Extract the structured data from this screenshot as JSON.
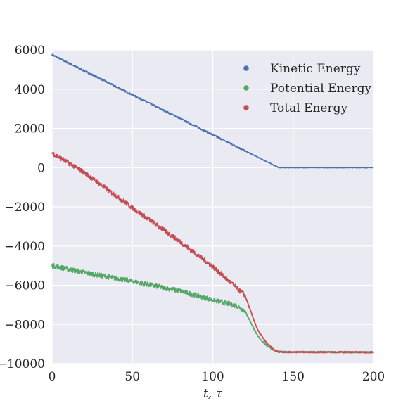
{
  "chart_data": {
    "type": "line",
    "title": "",
    "xlabel": "t, τ",
    "ylabel": "",
    "xlim": [
      0,
      200
    ],
    "ylim": [
      -10000,
      6000
    ],
    "xticks": [
      0,
      50,
      100,
      150,
      200
    ],
    "yticks": [
      -10000,
      -8000,
      -6000,
      -4000,
      -2000,
      0,
      2000,
      4000,
      6000
    ],
    "grid": true,
    "legend_position": "top-right",
    "background": "#eaeaf2",
    "series": [
      {
        "name": "Kinetic Energy",
        "color": "#4c72b0",
        "noise": 40,
        "points": [
          [
            0,
            5750
          ],
          [
            141,
            0
          ],
          [
            200,
            0
          ]
        ]
      },
      {
        "name": "Potential Energy",
        "color": "#55a868",
        "noise": 120,
        "points": [
          [
            0,
            -5000
          ],
          [
            20,
            -5350
          ],
          [
            50,
            -5800
          ],
          [
            80,
            -6300
          ],
          [
            100,
            -6750
          ],
          [
            115,
            -7050
          ],
          [
            120,
            -7300
          ],
          [
            123,
            -7800
          ],
          [
            128,
            -8600
          ],
          [
            133,
            -9050
          ],
          [
            138,
            -9300
          ],
          [
            141,
            -9400
          ],
          [
            150,
            -9410
          ],
          [
            200,
            -9420
          ]
        ]
      },
      {
        "name": "Total Energy",
        "color": "#c44e52",
        "noise": 120,
        "points": [
          [
            0,
            750
          ],
          [
            20,
            -250
          ],
          [
            50,
            -2050
          ],
          [
            80,
            -3800
          ],
          [
            100,
            -5050
          ],
          [
            115,
            -6150
          ],
          [
            120,
            -6500
          ],
          [
            123,
            -7200
          ],
          [
            128,
            -8300
          ],
          [
            133,
            -8900
          ],
          [
            138,
            -9300
          ],
          [
            141,
            -9400
          ],
          [
            150,
            -9410
          ],
          [
            200,
            -9420
          ]
        ]
      }
    ]
  }
}
